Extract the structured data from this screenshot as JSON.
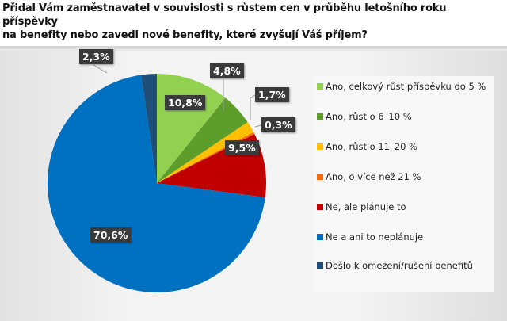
{
  "title_line1": "Přidal Vám zaměstnavatel v souvislosti s růstem cen v průběhu letošního roku příspěvky",
  "title_line2": "na benefity nebo zavedl nové benefity, které zvyšují Váš příjem?",
  "chart_data": {
    "type": "pie",
    "start": "top",
    "direction": "clockwise",
    "legend_position": "right",
    "slices": [
      {
        "name": "Ano, celkový růst příspěvku do 5 %",
        "value": 10.8,
        "label": "10,8%",
        "color": "#92d050"
      },
      {
        "name": "Ano, růst o 6–10 %",
        "value": 4.8,
        "label": "4,8%",
        "color": "#5d9e2a"
      },
      {
        "name": "Ano, růst o 11–20 %",
        "value": 1.7,
        "label": "1,7%",
        "color": "#ffc000"
      },
      {
        "name": "Ano, o více než 21 %",
        "value": 0.3,
        "label": "0,3%",
        "color": "#f46b12"
      },
      {
        "name": "Ne, ale plánuje to",
        "value": 9.5,
        "label": "9,5%",
        "color": "#c00000"
      },
      {
        "name": "Ne a ani to neplánuje",
        "value": 70.6,
        "label": "70,6%",
        "color": "#0070c0"
      },
      {
        "name": "Došlo k omezení/rušení benefitů",
        "value": 2.3,
        "label": "2,3%",
        "color": "#1f4e79"
      }
    ]
  }
}
